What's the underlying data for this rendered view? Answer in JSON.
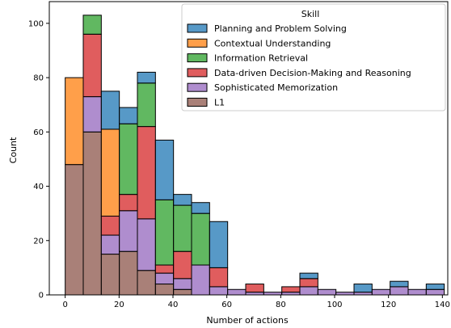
{
  "chart_data": {
    "type": "bar",
    "stacked": true,
    "xlabel": "Number of actions",
    "ylabel": "Count",
    "xlim": [
      -5.9,
      142
    ],
    "ylim": [
      0,
      108
    ],
    "x_ticks": [
      0,
      20,
      40,
      60,
      80,
      100,
      120,
      140
    ],
    "y_ticks": [
      0,
      20,
      40,
      60,
      80,
      100
    ],
    "bin_width": 6.7,
    "bin_starts": [
      0,
      6.7,
      13.4,
      20.1,
      26.8,
      33.5,
      40.2,
      46.9,
      53.6,
      60.3,
      67.0,
      73.7,
      80.4,
      87.1,
      93.8,
      100.5,
      107.2,
      113.9,
      120.6,
      127.3,
      134.0
    ],
    "legend": {
      "title": "Skill",
      "placement": "top-right"
    },
    "series": [
      {
        "name": "L1",
        "color": "#8c564b",
        "values": [
          48,
          60,
          15,
          16,
          9,
          4,
          2,
          0,
          0,
          0,
          0,
          0,
          0,
          0,
          0,
          0,
          0,
          0,
          0,
          0,
          0
        ]
      },
      {
        "name": "Sophisticated Memorization",
        "color": "#9467bd",
        "values": [
          0,
          13,
          7,
          15,
          19,
          4,
          4,
          11,
          3,
          2,
          1,
          1,
          1,
          3,
          2,
          1,
          1,
          2,
          3,
          2,
          2
        ]
      },
      {
        "name": "Data-driven Decision-Making and Reasoning",
        "color": "#d62728",
        "values": [
          0,
          23,
          7,
          6,
          34,
          3,
          10,
          0,
          7,
          0,
          3,
          0,
          2,
          3,
          0,
          0,
          0,
          0,
          0,
          0,
          0
        ]
      },
      {
        "name": "Information Retrieval",
        "color": "#2ca02c",
        "values": [
          0,
          7,
          0,
          26,
          16,
          24,
          17,
          19,
          0,
          0,
          0,
          0,
          0,
          0,
          0,
          0,
          0,
          0,
          0,
          0,
          0
        ]
      },
      {
        "name": "Contextual Understanding",
        "color": "#ff7f0e",
        "values": [
          32,
          0,
          32,
          0,
          0,
          0,
          0,
          0,
          0,
          0,
          0,
          0,
          0,
          0,
          0,
          0,
          0,
          0,
          0,
          0,
          0
        ]
      },
      {
        "name": "Planning and Problem Solving",
        "color": "#1f77b4",
        "values": [
          0,
          0,
          14,
          6,
          4,
          22,
          4,
          4,
          17,
          0,
          0,
          0,
          0,
          2,
          0,
          0,
          3,
          0,
          2,
          0,
          2
        ]
      }
    ]
  }
}
